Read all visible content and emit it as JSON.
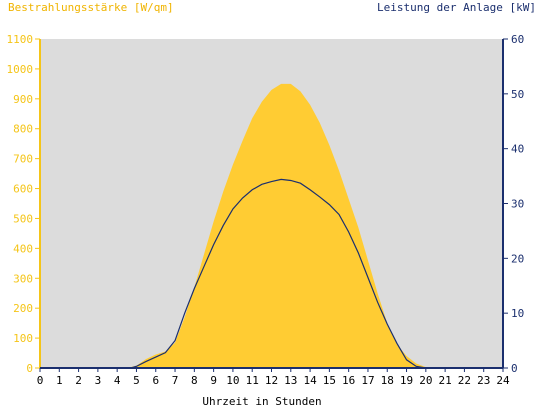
{
  "chart_data": {
    "type": "area",
    "title_left": "Bestrahlungsstärke [W/qm]",
    "title_right": "Leistung der Anlage [kW]",
    "xlabel": "Uhrzeit in Stunden",
    "xlim": [
      0,
      24
    ],
    "x_ticks": [
      "0",
      "1",
      "2",
      "3",
      "4",
      "5",
      "6",
      "7",
      "8",
      "9",
      "10",
      "11",
      "12",
      "13",
      "14",
      "15",
      "16",
      "17",
      "18",
      "19",
      "20",
      "21",
      "22",
      "23",
      "24"
    ],
    "y_left": {
      "lim": [
        0,
        1100
      ],
      "ticks": [
        "0",
        "100",
        "200",
        "300",
        "400",
        "500",
        "600",
        "700",
        "800",
        "900",
        "1000",
        "1100"
      ]
    },
    "y_right": {
      "lim": [
        0,
        60
      ],
      "ticks": [
        "0",
        "10",
        "20",
        "30",
        "40",
        "50",
        "60"
      ]
    },
    "grid": false,
    "colors": {
      "irradiance": "#ffcc33",
      "power": "#1b2f6e",
      "plot_bg": "#dcdcdc",
      "left_axis": "#f5c518",
      "right_axis": "#1b2f6e"
    },
    "series": [
      {
        "name": "Bestrahlungsstärke",
        "axis": "left",
        "type": "area",
        "x": [
          0,
          4.5,
          5,
          5.5,
          6,
          6.5,
          7,
          7.5,
          8,
          8.5,
          9,
          9.5,
          10,
          10.5,
          11,
          11.5,
          12,
          12.5,
          13,
          13.5,
          14,
          14.5,
          15,
          15.5,
          16,
          16.5,
          17,
          17.5,
          18,
          18.5,
          19,
          19.5,
          20,
          20.5,
          24
        ],
        "y": [
          0,
          0,
          8,
          30,
          45,
          55,
          85,
          170,
          270,
          380,
          490,
          590,
          680,
          760,
          835,
          890,
          930,
          950,
          950,
          925,
          880,
          820,
          745,
          660,
          565,
          470,
          360,
          250,
          150,
          80,
          40,
          15,
          3,
          0,
          0
        ]
      },
      {
        "name": "Leistung",
        "axis": "right",
        "type": "line",
        "x": [
          0,
          4.7,
          5,
          5.5,
          6,
          6.5,
          7,
          7.5,
          8,
          8.5,
          9,
          9.5,
          10,
          10.5,
          11,
          11.5,
          12,
          12.5,
          13,
          13.5,
          14,
          14.5,
          15,
          15.5,
          16,
          16.5,
          17,
          17.5,
          18,
          18.5,
          19,
          19.5,
          20,
          24
        ],
        "y": [
          0,
          0,
          0.3,
          1.2,
          2,
          2.8,
          5,
          10,
          14.5,
          18.5,
          22.5,
          26,
          29,
          31,
          32.5,
          33.5,
          34,
          34.4,
          34.2,
          33.7,
          32.5,
          31.2,
          29.8,
          28,
          24.8,
          21,
          16.5,
          12,
          8,
          4.5,
          1.5,
          0.3,
          0,
          0
        ]
      }
    ]
  }
}
